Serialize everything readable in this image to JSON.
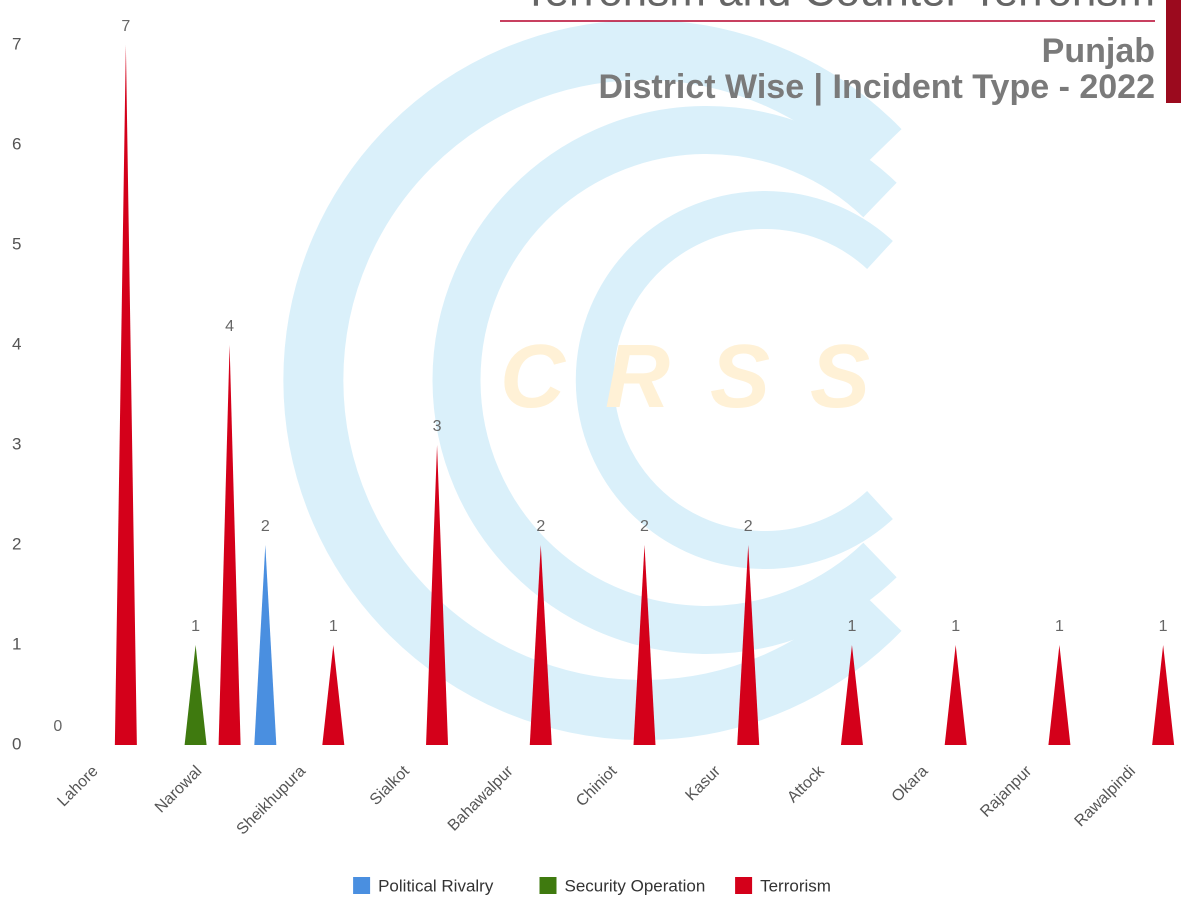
{
  "chart_data": {
    "type": "spike",
    "title": "Terrorism and Counter Terrorism",
    "subtitle": "Punjab",
    "subtitle2": "District Wise | Incident Type - 2022",
    "watermark": "CRSS",
    "categories": [
      "Lahore",
      "Narowal",
      "Sheikhupura",
      "Sialkot",
      "Bahawalpur",
      "Chiniot",
      "Kasur",
      "Attock",
      "Okara",
      "Rajanpur",
      "Rawalpindi"
    ],
    "series": [
      {
        "name": "Political Rivalry",
        "color": "#4a8fe0",
        "values": [
          0,
          null,
          2,
          null,
          null,
          null,
          null,
          null,
          null,
          null,
          null
        ]
      },
      {
        "name": "Security Operation",
        "color": "#3f7a0f",
        "values": [
          null,
          1,
          null,
          null,
          null,
          null,
          null,
          null,
          null,
          null,
          null
        ]
      },
      {
        "name": "Terrorism",
        "color": "#d4001a",
        "values": [
          7,
          4,
          1,
          3,
          2,
          2,
          2,
          1,
          1,
          1,
          1
        ]
      }
    ],
    "ylim": [
      0,
      7
    ],
    "yticks": [
      0,
      1,
      2,
      3,
      4,
      5,
      6,
      7
    ],
    "grid": false
  }
}
